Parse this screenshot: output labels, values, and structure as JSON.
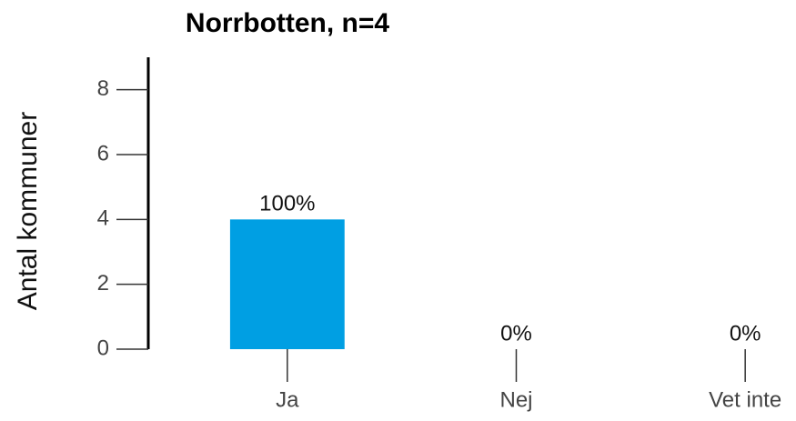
{
  "chart_data": {
    "type": "bar",
    "title": "Norrbotten, n=4",
    "y_label": "Antal kommuner",
    "categories": [
      "Ja",
      "Nej",
      "Vet inte"
    ],
    "values": [
      4,
      0,
      0
    ],
    "percent_labels": [
      "100%",
      "0%",
      "0%"
    ],
    "color": "#009fe3",
    "ylim": [
      0,
      9
    ],
    "yticks": [
      0,
      2,
      4,
      6,
      8
    ],
    "grid": false
  }
}
